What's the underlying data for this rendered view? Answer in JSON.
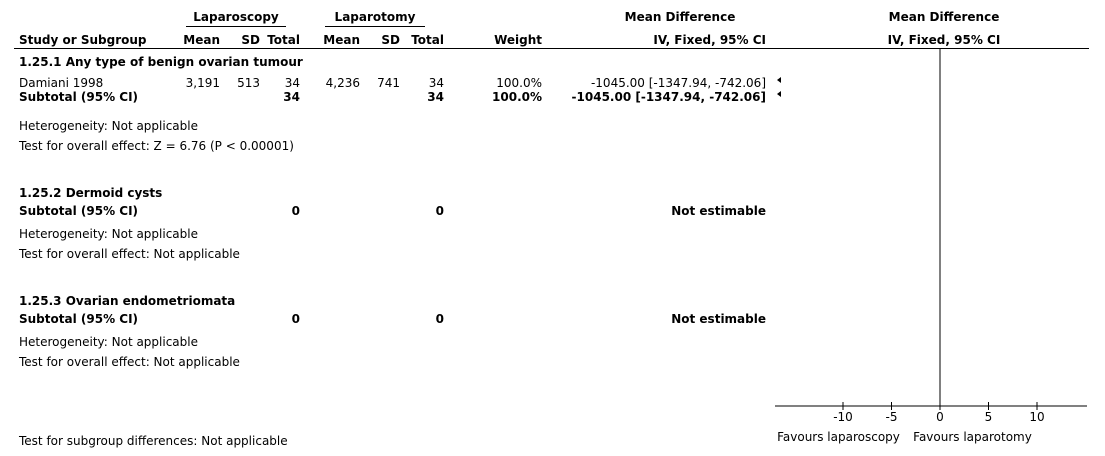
{
  "header": {
    "group1": "Laparoscopy",
    "group2": "Laparotomy",
    "effect_measure": "Mean Difference",
    "effect_measure_plot": "Mean Difference",
    "col_study": "Study or Subgroup",
    "col_mean": "Mean",
    "col_sd": "SD",
    "col_total": "Total",
    "col_weight": "Weight",
    "col_ci": "IV, Fixed, 95% CI",
    "col_ci_plot": "IV, Fixed, 95% CI"
  },
  "subgroups": [
    {
      "title": "1.25.1 Any type of benign ovarian tumour",
      "study": {
        "name": "Damiani 1998",
        "mean1": "3,191",
        "sd1": "513",
        "total1": "34",
        "mean2": "4,236",
        "sd2": "741",
        "total2": "34",
        "weight": "100.0%",
        "ci": "-1045.00 [-1347.94, -742.06]"
      },
      "subtotal": {
        "label": "Subtotal (95% CI)",
        "total1": "34",
        "total2": "34",
        "weight": "100.0%",
        "ci": "-1045.00 [-1347.94, -742.06]"
      },
      "heterogeneity": "Heterogeneity: Not applicable",
      "overall_effect": "Test for overall effect: Z = 6.76 (P < 0.00001)"
    },
    {
      "title": "1.25.2 Dermoid cysts",
      "subtotal": {
        "label": "Subtotal (95% CI)",
        "total1": "0",
        "total2": "0",
        "ci": "Not estimable"
      },
      "heterogeneity": "Heterogeneity: Not applicable",
      "overall_effect": "Test for overall effect: Not applicable"
    },
    {
      "title": "1.25.3 Ovarian endometriomata",
      "subtotal": {
        "label": "Subtotal (95% CI)",
        "total1": "0",
        "total2": "0",
        "ci": "Not estimable"
      },
      "heterogeneity": "Heterogeneity: Not applicable",
      "overall_effect": "Test for overall effect: Not applicable"
    }
  ],
  "footer": {
    "subgroup_diff": "Test for subgroup differences: Not applicable",
    "favours_left": "Favours laparoscopy",
    "favours_right": "Favours laparotomy"
  },
  "chart_data": {
    "type": "forest",
    "axis": {
      "ticks": [
        -10,
        -5,
        0,
        5,
        10
      ],
      "tick_labels": [
        "-10",
        "-5",
        "0",
        "5",
        "10"
      ],
      "xlim": [
        -20,
        20
      ]
    },
    "estimates": [
      {
        "label": "Damiani 1998",
        "kind": "study",
        "md": -1045.0,
        "ci": [
          -1347.94,
          -742.06
        ]
      },
      {
        "label": "Subtotal (95% CI)",
        "kind": "subtotal",
        "md": -1045.0,
        "ci": [
          -1347.94,
          -742.06
        ]
      }
    ],
    "offscale_marker_color": "#000000"
  }
}
